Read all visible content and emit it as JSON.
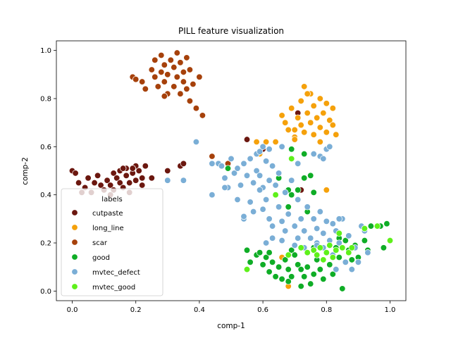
{
  "chart_data": {
    "type": "scatter",
    "title": "PILL feature visualization",
    "xlabel": "comp-1",
    "ylabel": "comp-2",
    "xlim": [
      -0.05,
      1.05
    ],
    "ylim": [
      -0.04,
      1.04
    ],
    "xticks": [
      "0.0",
      "0.2",
      "0.4",
      "0.6",
      "0.8",
      "1.0"
    ],
    "yticks": [
      "0.0",
      "0.2",
      "0.4",
      "0.6",
      "0.8",
      "1.0"
    ],
    "grid": false,
    "legend": {
      "title": "labels",
      "placement": "lower-left"
    },
    "series": [
      {
        "name": "cutpaste",
        "color": "#6b170f",
        "points": [
          [
            0.0,
            0.5
          ],
          [
            0.02,
            0.45
          ],
          [
            0.04,
            0.43
          ],
          [
            0.05,
            0.47
          ],
          [
            0.06,
            0.41
          ],
          [
            0.07,
            0.45
          ],
          [
            0.08,
            0.48
          ],
          [
            0.09,
            0.44
          ],
          [
            0.1,
            0.42
          ],
          [
            0.11,
            0.46
          ],
          [
            0.12,
            0.44
          ],
          [
            0.13,
            0.49
          ],
          [
            0.13,
            0.42
          ],
          [
            0.14,
            0.47
          ],
          [
            0.15,
            0.45
          ],
          [
            0.15,
            0.5
          ],
          [
            0.16,
            0.43
          ],
          [
            0.17,
            0.48
          ],
          [
            0.17,
            0.51
          ],
          [
            0.18,
            0.45
          ],
          [
            0.18,
            0.41
          ],
          [
            0.19,
            0.49
          ],
          [
            0.2,
            0.46
          ],
          [
            0.2,
            0.52
          ],
          [
            0.21,
            0.5
          ],
          [
            0.22,
            0.44
          ],
          [
            0.22,
            0.47
          ],
          [
            0.23,
            0.52
          ],
          [
            0.25,
            0.47
          ],
          [
            0.03,
            0.41
          ],
          [
            0.16,
            0.51
          ],
          [
            0.19,
            0.51
          ],
          [
            0.3,
            0.5
          ],
          [
            0.34,
            0.52
          ],
          [
            0.35,
            0.53
          ],
          [
            0.55,
            0.63
          ],
          [
            0.6,
            0.59
          ],
          [
            0.71,
            0.74
          ],
          [
            0.72,
            0.42
          ],
          [
            0.01,
            0.49
          ],
          [
            0.12,
            0.4
          ]
        ]
      },
      {
        "name": "long_line",
        "color": "#f5a10b",
        "points": [
          [
            0.66,
            0.73
          ],
          [
            0.67,
            0.7
          ],
          [
            0.68,
            0.67
          ],
          [
            0.69,
            0.76
          ],
          [
            0.7,
            0.64
          ],
          [
            0.71,
            0.72
          ],
          [
            0.72,
            0.69
          ],
          [
            0.72,
            0.79
          ],
          [
            0.73,
            0.66
          ],
          [
            0.73,
            0.85
          ],
          [
            0.74,
            0.74
          ],
          [
            0.75,
            0.7
          ],
          [
            0.75,
            0.82
          ],
          [
            0.76,
            0.65
          ],
          [
            0.76,
            0.77
          ],
          [
            0.77,
            0.72
          ],
          [
            0.78,
            0.68
          ],
          [
            0.78,
            0.8
          ],
          [
            0.79,
            0.74
          ],
          [
            0.8,
            0.66
          ],
          [
            0.8,
            0.78
          ],
          [
            0.81,
            0.71
          ],
          [
            0.82,
            0.69
          ],
          [
            0.82,
            0.76
          ],
          [
            0.83,
            0.65
          ],
          [
            0.7,
            0.67
          ],
          [
            0.74,
            0.82
          ],
          [
            0.78,
            0.62
          ],
          [
            0.61,
            0.62
          ],
          [
            0.58,
            0.62
          ],
          [
            0.64,
            0.62
          ],
          [
            0.59,
            0.57
          ],
          [
            0.8,
            0.42
          ],
          [
            0.7,
            0.63
          ],
          [
            0.66,
            0.14
          ],
          [
            0.68,
            0.02
          ]
        ]
      },
      {
        "name": "scar",
        "color": "#a6410b",
        "points": [
          [
            0.19,
            0.89
          ],
          [
            0.2,
            0.88
          ],
          [
            0.22,
            0.87
          ],
          [
            0.23,
            0.84
          ],
          [
            0.25,
            0.92
          ],
          [
            0.26,
            0.89
          ],
          [
            0.26,
            0.96
          ],
          [
            0.27,
            0.85
          ],
          [
            0.28,
            0.91
          ],
          [
            0.28,
            0.98
          ],
          [
            0.29,
            0.87
          ],
          [
            0.29,
            0.94
          ],
          [
            0.3,
            0.9
          ],
          [
            0.3,
            0.82
          ],
          [
            0.31,
            0.96
          ],
          [
            0.32,
            0.93
          ],
          [
            0.32,
            0.85
          ],
          [
            0.33,
            0.99
          ],
          [
            0.33,
            0.89
          ],
          [
            0.34,
            0.95
          ],
          [
            0.34,
            0.82
          ],
          [
            0.35,
            0.91
          ],
          [
            0.35,
            0.87
          ],
          [
            0.36,
            0.97
          ],
          [
            0.36,
            0.84
          ],
          [
            0.37,
            0.92
          ],
          [
            0.37,
            0.79
          ],
          [
            0.38,
            0.86
          ],
          [
            0.39,
            0.76
          ],
          [
            0.4,
            0.89
          ],
          [
            0.41,
            0.73
          ],
          [
            0.29,
            0.81
          ],
          [
            0.44,
            0.56
          ],
          [
            0.49,
            0.53
          ]
        ]
      },
      {
        "name": "good",
        "color": "#0fad26",
        "points": [
          [
            0.49,
            0.51
          ],
          [
            0.55,
            0.17
          ],
          [
            0.56,
            0.12
          ],
          [
            0.58,
            0.15
          ],
          [
            0.59,
            0.16
          ],
          [
            0.6,
            0.11
          ],
          [
            0.61,
            0.14
          ],
          [
            0.62,
            0.08
          ],
          [
            0.62,
            0.16
          ],
          [
            0.63,
            0.12
          ],
          [
            0.64,
            0.06
          ],
          [
            0.65,
            0.1
          ],
          [
            0.66,
            0.05
          ],
          [
            0.67,
            0.13
          ],
          [
            0.68,
            0.09
          ],
          [
            0.68,
            0.04
          ],
          [
            0.69,
            0.06
          ],
          [
            0.69,
            0.17
          ],
          [
            0.7,
            0.15
          ],
          [
            0.71,
            0.11
          ],
          [
            0.72,
            0.02
          ],
          [
            0.73,
            0.06
          ],
          [
            0.74,
            0.1
          ],
          [
            0.75,
            0.03
          ],
          [
            0.76,
            0.07
          ],
          [
            0.76,
            0.18
          ],
          [
            0.77,
            0.13
          ],
          [
            0.78,
            0.09
          ],
          [
            0.79,
            0.05
          ],
          [
            0.8,
            0.16
          ],
          [
            0.81,
            0.11
          ],
          [
            0.82,
            0.07
          ],
          [
            0.83,
            0.18
          ],
          [
            0.84,
            0.14
          ],
          [
            0.85,
            0.01
          ],
          [
            0.86,
            0.21
          ],
          [
            0.87,
            0.17
          ],
          [
            0.88,
            0.13
          ],
          [
            0.89,
            0.19
          ],
          [
            0.9,
            0.14
          ],
          [
            0.92,
            0.21
          ],
          [
            0.93,
            0.17
          ],
          [
            0.94,
            0.27
          ],
          [
            0.97,
            0.27
          ],
          [
            0.98,
            0.18
          ],
          [
            0.99,
            0.28
          ],
          [
            0.65,
            0.47
          ],
          [
            0.69,
            0.4
          ],
          [
            0.71,
            0.42
          ],
          [
            0.73,
            0.47
          ],
          [
            0.74,
            0.33
          ],
          [
            0.75,
            0.48
          ],
          [
            0.76,
            0.41
          ],
          [
            0.68,
            0.42
          ],
          [
            0.69,
            0.59
          ],
          [
            0.73,
            0.57
          ],
          [
            0.68,
            0.35
          ],
          [
            0.72,
            0.09
          ],
          [
            0.84,
            0.22
          ]
        ]
      },
      {
        "name": "mvtec_defect",
        "color": "#7aaed6",
        "points": [
          [
            0.39,
            0.62
          ],
          [
            0.3,
            0.46
          ],
          [
            0.35,
            0.46
          ],
          [
            0.44,
            0.4
          ],
          [
            0.44,
            0.53
          ],
          [
            0.46,
            0.53
          ],
          [
            0.47,
            0.52
          ],
          [
            0.48,
            0.47
          ],
          [
            0.49,
            0.43
          ],
          [
            0.5,
            0.55
          ],
          [
            0.51,
            0.49
          ],
          [
            0.52,
            0.51
          ],
          [
            0.53,
            0.44
          ],
          [
            0.54,
            0.53
          ],
          [
            0.54,
            0.3
          ],
          [
            0.55,
            0.48
          ],
          [
            0.56,
            0.37
          ],
          [
            0.56,
            0.55
          ],
          [
            0.57,
            0.33
          ],
          [
            0.58,
            0.5
          ],
          [
            0.58,
            0.57
          ],
          [
            0.59,
            0.48
          ],
          [
            0.59,
            0.58
          ],
          [
            0.6,
            0.43
          ],
          [
            0.61,
            0.38
          ],
          [
            0.61,
            0.54
          ],
          [
            0.62,
            0.46
          ],
          [
            0.62,
            0.3
          ],
          [
            0.63,
            0.52
          ],
          [
            0.63,
            0.27
          ],
          [
            0.64,
            0.44
          ],
          [
            0.65,
            0.35
          ],
          [
            0.65,
            0.49
          ],
          [
            0.66,
            0.29
          ],
          [
            0.67,
            0.41
          ],
          [
            0.67,
            0.25
          ],
          [
            0.68,
            0.32
          ],
          [
            0.69,
            0.46
          ],
          [
            0.7,
            0.27
          ],
          [
            0.71,
            0.38
          ],
          [
            0.71,
            0.22
          ],
          [
            0.72,
            0.3
          ],
          [
            0.73,
            0.18
          ],
          [
            0.73,
            0.25
          ],
          [
            0.74,
            0.35
          ],
          [
            0.75,
            0.22
          ],
          [
            0.76,
            0.3
          ],
          [
            0.77,
            0.26
          ],
          [
            0.77,
            0.2
          ],
          [
            0.78,
            0.33
          ],
          [
            0.79,
            0.24
          ],
          [
            0.79,
            0.18
          ],
          [
            0.8,
            0.29
          ],
          [
            0.81,
            0.21
          ],
          [
            0.82,
            0.15
          ],
          [
            0.82,
            0.28
          ],
          [
            0.83,
            0.25
          ],
          [
            0.83,
            0.09
          ],
          [
            0.84,
            0.2
          ],
          [
            0.85,
            0.3
          ],
          [
            0.86,
            0.12
          ],
          [
            0.87,
            0.23
          ],
          [
            0.88,
            0.09
          ],
          [
            0.89,
            0.18
          ],
          [
            0.9,
            0.12
          ],
          [
            0.91,
            0.27
          ],
          [
            0.92,
            0.25
          ],
          [
            0.93,
            0.16
          ],
          [
            0.6,
            0.6
          ],
          [
            0.62,
            0.59
          ],
          [
            0.66,
            0.6
          ],
          [
            0.69,
            0.55
          ],
          [
            0.71,
            0.53
          ],
          [
            0.76,
            0.57
          ],
          [
            0.78,
            0.56
          ],
          [
            0.79,
            0.55
          ],
          [
            0.8,
            0.59
          ],
          [
            0.81,
            0.6
          ],
          [
            0.54,
            0.31
          ],
          [
            0.52,
            0.38
          ],
          [
            0.48,
            0.43
          ],
          [
            0.57,
            0.45
          ],
          [
            0.59,
            0.42
          ],
          [
            0.6,
            0.34
          ],
          [
            0.61,
            0.2
          ],
          [
            0.63,
            0.22
          ],
          [
            0.66,
            0.21
          ],
          [
            0.7,
            0.19
          ],
          [
            0.77,
            0.19
          ],
          [
            0.84,
            0.3
          ]
        ]
      },
      {
        "name": "mvtec_good",
        "color": "#5ef01a",
        "points": [
          [
            0.55,
            0.09
          ],
          [
            0.64,
            0.4
          ],
          [
            0.69,
            0.55
          ],
          [
            0.74,
            0.16
          ],
          [
            0.76,
            0.17
          ],
          [
            0.77,
            0.15
          ],
          [
            0.78,
            0.18
          ],
          [
            0.79,
            0.13
          ],
          [
            0.8,
            0.16
          ],
          [
            0.81,
            0.19
          ],
          [
            0.82,
            0.14
          ],
          [
            0.83,
            0.17
          ],
          [
            0.84,
            0.24
          ],
          [
            0.85,
            0.18
          ],
          [
            0.87,
            0.16
          ],
          [
            0.88,
            0.18
          ],
          [
            0.92,
            0.26
          ],
          [
            0.96,
            0.27
          ],
          [
            1.0,
            0.21
          ],
          [
            0.72,
            0.18
          ],
          [
            0.68,
            0.15
          ]
        ]
      }
    ]
  }
}
